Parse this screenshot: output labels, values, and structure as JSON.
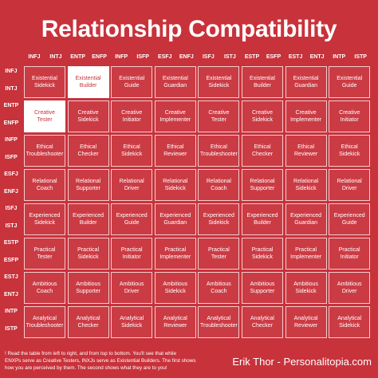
{
  "title": "Relationship Compatibility",
  "columns": [
    [
      "INFJ",
      "INTJ"
    ],
    [
      "ENTP",
      "ENFP"
    ],
    [
      "INFP",
      "ISFP"
    ],
    [
      "ESFJ",
      "ENFJ"
    ],
    [
      "ISFJ",
      "ISTJ"
    ],
    [
      "ESTP",
      "ESFP"
    ],
    [
      "ESTJ",
      "ENTJ"
    ],
    [
      "INTP",
      "ISTP"
    ]
  ],
  "rows": [
    [
      "INFJ",
      "INTJ"
    ],
    [
      "ENTP",
      "ENFP"
    ],
    [
      "INFP",
      "ISFP"
    ],
    [
      "ESFJ",
      "ENFJ"
    ],
    [
      "ISFJ",
      "ISTJ"
    ],
    [
      "ESTP",
      "ESFP"
    ],
    [
      "ESTJ",
      "ENTJ"
    ],
    [
      "INTP",
      "ISTP"
    ]
  ],
  "cells": [
    [
      [
        "Existential",
        "Sidekick"
      ],
      [
        "Existential",
        "Builder"
      ],
      [
        "Existential",
        "Guide"
      ],
      [
        "Existential",
        "Guardian"
      ],
      [
        "Existential",
        "Sidekick"
      ],
      [
        "Existential",
        "Builder"
      ],
      [
        "Existential",
        "Guardian"
      ],
      [
        "Existential",
        "Guide"
      ]
    ],
    [
      [
        "Creative",
        "Tester"
      ],
      [
        "Creative",
        "Sidekick"
      ],
      [
        "Creative",
        "Initiator"
      ],
      [
        "Creative",
        "Implementer"
      ],
      [
        "Creative",
        "Tester"
      ],
      [
        "Creative",
        "Sidekick"
      ],
      [
        "Creative",
        "Implementer"
      ],
      [
        "Creative",
        "Initiator"
      ]
    ],
    [
      [
        "Ethical",
        "Troubleshooter"
      ],
      [
        "Ethical",
        "Checker"
      ],
      [
        "Ethical",
        "Sidekick"
      ],
      [
        "Ethical",
        "Reviewer"
      ],
      [
        "Ethical",
        "Troubleshooter"
      ],
      [
        "Ethical",
        "Checker"
      ],
      [
        "Ethical",
        "Reviewer"
      ],
      [
        "Ethical",
        "Sidekick"
      ]
    ],
    [
      [
        "Relational",
        "Coach"
      ],
      [
        "Relational",
        "Supporter"
      ],
      [
        "Relational",
        "Driver"
      ],
      [
        "Relational",
        "Sidekick"
      ],
      [
        "Relational",
        "Coach"
      ],
      [
        "Relational",
        "Supporter"
      ],
      [
        "Relational",
        "Sidekick"
      ],
      [
        "Relational",
        "Driver"
      ]
    ],
    [
      [
        "Experienced",
        "Sidekick"
      ],
      [
        "Experienced",
        "Builder"
      ],
      [
        "Experienced",
        "Guide"
      ],
      [
        "Experienced",
        "Guardian"
      ],
      [
        "Experienced",
        "Sidekick"
      ],
      [
        "Experienced",
        "Builder"
      ],
      [
        "Experienced",
        "Guardian"
      ],
      [
        "Experienced",
        "Guide"
      ]
    ],
    [
      [
        "Practical",
        "Tester"
      ],
      [
        "Practical",
        "Sidekick"
      ],
      [
        "Practical",
        "Initiator"
      ],
      [
        "Practical",
        "Implementer"
      ],
      [
        "Practical",
        "Tester"
      ],
      [
        "Practical",
        "Sidekick"
      ],
      [
        "Practical",
        "Implementer"
      ],
      [
        "Practical",
        "Initiator"
      ]
    ],
    [
      [
        "Ambitious",
        "Coach"
      ],
      [
        "Ambitious",
        "Supporter"
      ],
      [
        "Ambitious",
        "Driver"
      ],
      [
        "Ambitious",
        "Sidekick"
      ],
      [
        "Ambitious",
        "Coach"
      ],
      [
        "Ambitious",
        "Supporter"
      ],
      [
        "Ambitious",
        "Sidekick"
      ],
      [
        "Ambitious",
        "Driver"
      ]
    ],
    [
      [
        "Analytical",
        "Troubleshooter"
      ],
      [
        "Analytical",
        "Checker"
      ],
      [
        "Analytical",
        "Sidekick"
      ],
      [
        "Analytical",
        "Reviewer"
      ],
      [
        "Analytical",
        "Troubleshooter"
      ],
      [
        "Analytical",
        "Checker"
      ],
      [
        "Analytical",
        "Reviewer"
      ],
      [
        "Analytical",
        "Sidekick"
      ]
    ]
  ],
  "highlighted": [
    {
      "row": 0,
      "col": 1
    },
    {
      "row": 1,
      "col": 0
    }
  ],
  "note": [
    "! Read the table from left to right, and from top to bottom. You'll see that while",
    "ENXPs serve as Creative Testers, INXJs serve as Existential Builders. The first shows",
    "how you are perceived by them. The second shows what they are to you!"
  ],
  "credit": "Erik Thor - Personalitopia.com"
}
